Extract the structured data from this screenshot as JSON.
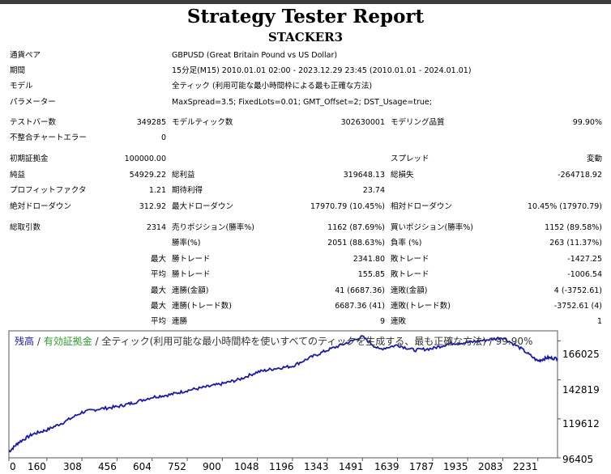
{
  "header": {
    "title": "Strategy Tester Report",
    "subtitle": "STACKER3"
  },
  "info": {
    "symbol_label": "通貨ペア",
    "symbol_value": "GBPUSD (Great Britain Pound vs US Dollar)",
    "period_label": "期間",
    "period_value": "15分足(M15) 2010.01.01 02:00 - 2023.12.29 23:45 (2010.01.01 - 2024.01.01)",
    "model_label": "モデル",
    "model_value": "全ティック (利用可能な最小時間枠による最も正確な方法)",
    "params_label": "パラメーター",
    "params_value": "MaxSpread=3.5; FixedLots=0.01; GMT_Offset=2; DST_Usage=true;"
  },
  "stats": {
    "bars_label": "テストバー数",
    "bars_value": "349285",
    "ticks_label": "モデルティック数",
    "ticks_value": "302630001",
    "quality_label": "モデリング品質",
    "quality_value": "99.90%",
    "mismatch_label": "不整合チャートエラー",
    "mismatch_value": "0",
    "deposit_label": "初期証拠金",
    "deposit_value": "100000.00",
    "spread_label": "スプレッド",
    "spread_value": "変動",
    "netprofit_label": "純益",
    "netprofit_value": "54929.22",
    "grossprofit_label": "総利益",
    "grossprofit_value": "319648.13",
    "grossloss_label": "総損失",
    "grossloss_value": "-264718.92",
    "pf_label": "プロフィットファクタ",
    "pf_value": "1.21",
    "payoff_label": "期待利得",
    "payoff_value": "23.74",
    "absdd_label": "絶対ドローダウン",
    "absdd_value": "312.92",
    "maxdd_label": "最大ドローダウン",
    "maxdd_value": "17970.79 (10.45%)",
    "reldd_label": "相対ドローダウン",
    "reldd_value": "10.45% (17970.79)",
    "trades_label": "総取引数",
    "trades_value": "2314",
    "short_label": "売りポジション(勝率%)",
    "short_value": "1162 (87.69%)",
    "long_label": "買いポジション(勝率%)",
    "long_value": "1152 (89.58%)",
    "winrate_label": "勝率(%)",
    "winrate_value": "2051 (88.63%)",
    "lossrate_label": "負率 (%)",
    "lossrate_value": "263 (11.37%)",
    "max_label": "最大",
    "avg_label": "平均",
    "maxwin_label": "勝トレード",
    "maxwin_value": "2341.80",
    "maxloss_label": "敗トレード",
    "maxloss_value": "-1427.25",
    "avgwin_label": "勝トレード",
    "avgwin_value": "155.85",
    "avgloss_label": "敗トレード",
    "avgloss_value": "-1006.54",
    "consw_label": "連勝(金額)",
    "consw_value": "41 (6687.36)",
    "consl_label": "連敗(金額)",
    "consl_value": "4 (-3752.61)",
    "conspw_label": "連勝(トレード数)",
    "conspw_value": "6687.36 (41)",
    "conspl_label": "連敗(トレード数)",
    "conspl_value": "-3752.61 (4)",
    "avgcw_label": "連勝",
    "avgcw_value": "9",
    "avgcl_label": "連敗",
    "avgcl_value": "1"
  },
  "chart_data": {
    "type": "line",
    "legend": {
      "balance": "残高",
      "sep1": " / ",
      "equity": "有効証拠金",
      "sep2": " / 全ティック(利用可能な最小時間枠を使いすべてのティックを生成する、最も正確な方法) / 99.90%"
    },
    "colors": {
      "line": "#1a1aa8",
      "balance": "#1a1aa8",
      "equity": "#2e9a2e",
      "text": "#333333"
    },
    "xticks": [
      0,
      160,
      308,
      456,
      604,
      752,
      900,
      1048,
      1196,
      1343,
      1491,
      1639,
      1787,
      1935,
      2083,
      2231
    ],
    "yticks": [
      "166025",
      "142819",
      "119612",
      "96405"
    ],
    "ylim": [
      96405,
      172000
    ],
    "xlim": [
      0,
      2314
    ],
    "x": [
      0,
      40,
      100,
      160,
      230,
      308,
      380,
      456,
      520,
      604,
      680,
      752,
      830,
      900,
      970,
      1048,
      1120,
      1196,
      1270,
      1343,
      1420,
      1491,
      1560,
      1639,
      1710,
      1787,
      1860,
      1935,
      2010,
      2083,
      2160,
      2231,
      2270,
      2314
    ],
    "y": [
      100000,
      105500,
      110500,
      113000,
      117500,
      123500,
      125500,
      126800,
      129000,
      132500,
      134000,
      136500,
      138500,
      140500,
      143000,
      147500,
      149500,
      151000,
      156000,
      160500,
      164500,
      168500,
      161000,
      163500,
      160500,
      161500,
      164500,
      165000,
      166500,
      168000,
      161500,
      154000,
      156000,
      155500
    ]
  }
}
